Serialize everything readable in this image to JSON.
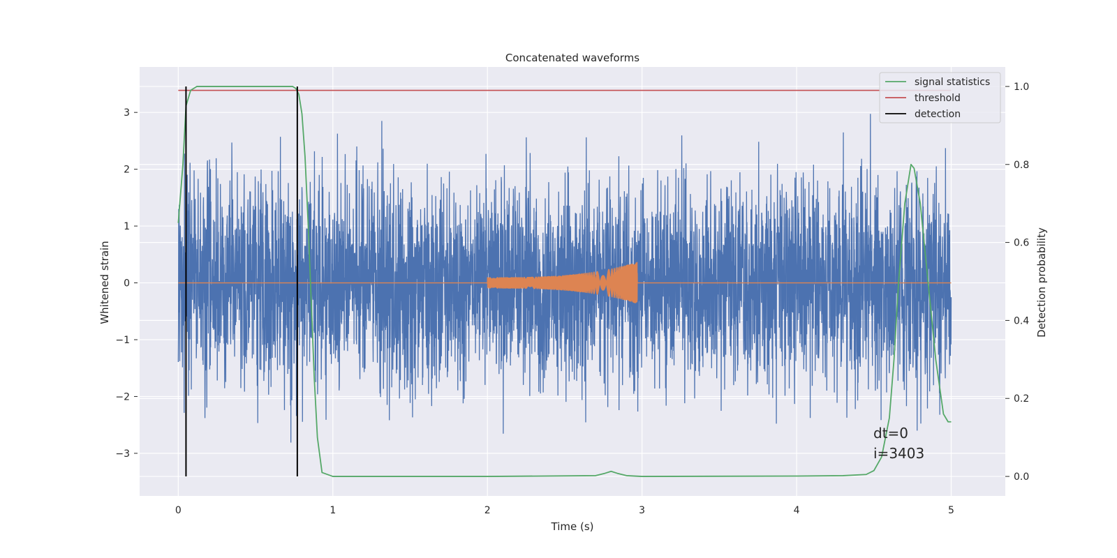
{
  "chart_data": {
    "type": "line",
    "title": "Concatenated waveforms",
    "xlabel": "Time (s)",
    "ylabel": "Whitened strain",
    "y2label": "Detection probability",
    "xlim": [
      -0.25,
      5.35
    ],
    "ylim": [
      -3.75,
      3.8
    ],
    "y2lim": [
      -0.05,
      1.05
    ],
    "x_ticks": [
      "0",
      "1",
      "2",
      "3",
      "4",
      "5"
    ],
    "y_ticks": [
      "−3",
      "−2",
      "−1",
      "0",
      "1",
      "2",
      "3"
    ],
    "y2_ticks": [
      "0.0",
      "0.2",
      "0.4",
      "0.6",
      "0.8",
      "1.0"
    ],
    "grid": true,
    "legend_position": "top-right",
    "legend": [
      {
        "name": "signal statistics",
        "color": "#55a868"
      },
      {
        "name": "threshold",
        "color": "#c44e52"
      },
      {
        "name": "detection",
        "color": "#000000"
      }
    ],
    "colors": {
      "strain": "#4c72b0",
      "injected_waveform": "#dd8452",
      "signal_statistics": "#55a868",
      "threshold": "#c44e52",
      "detection": "#000000",
      "axes_bg": "#eaeaf2"
    },
    "strain_noise": {
      "x_range": [
        0,
        5
      ],
      "approx_range": [
        -3.4,
        3.4
      ]
    },
    "injected_waveform": {
      "x_range": [
        0,
        5
      ],
      "chirp_start": 2.0,
      "chirp_end": 2.97,
      "start_amplitude": 0.1,
      "end_amplitude": 0.37
    },
    "threshold_value": 0.99,
    "signal_statistics": {
      "x": [
        0,
        0.03,
        0.05,
        0.08,
        0.12,
        0.2,
        0.5,
        0.74,
        0.76,
        0.78,
        0.8,
        0.82,
        0.84,
        0.86,
        0.88,
        0.9,
        0.93,
        1.0,
        2.0,
        2.7,
        2.76,
        2.8,
        2.84,
        2.9,
        3.0,
        4.0,
        4.3,
        4.45,
        4.5,
        4.55,
        4.6,
        4.63,
        4.66,
        4.7,
        4.74,
        4.76,
        4.8,
        4.85,
        4.9,
        4.95,
        4.98,
        5.0
      ],
      "values": [
        0.65,
        0.8,
        0.95,
        0.99,
        1.0,
        1.0,
        1.0,
        1.0,
        0.995,
        0.98,
        0.93,
        0.82,
        0.65,
        0.45,
        0.25,
        0.1,
        0.01,
        0.0,
        0.0,
        0.002,
        0.008,
        0.013,
        0.008,
        0.002,
        0.0,
        0.001,
        0.002,
        0.005,
        0.015,
        0.05,
        0.15,
        0.3,
        0.5,
        0.7,
        0.8,
        0.79,
        0.7,
        0.5,
        0.3,
        0.16,
        0.14,
        0.14
      ]
    },
    "detections": [
      0.05,
      0.77
    ],
    "annotations": [
      "dt=0",
      "i=3403"
    ]
  }
}
